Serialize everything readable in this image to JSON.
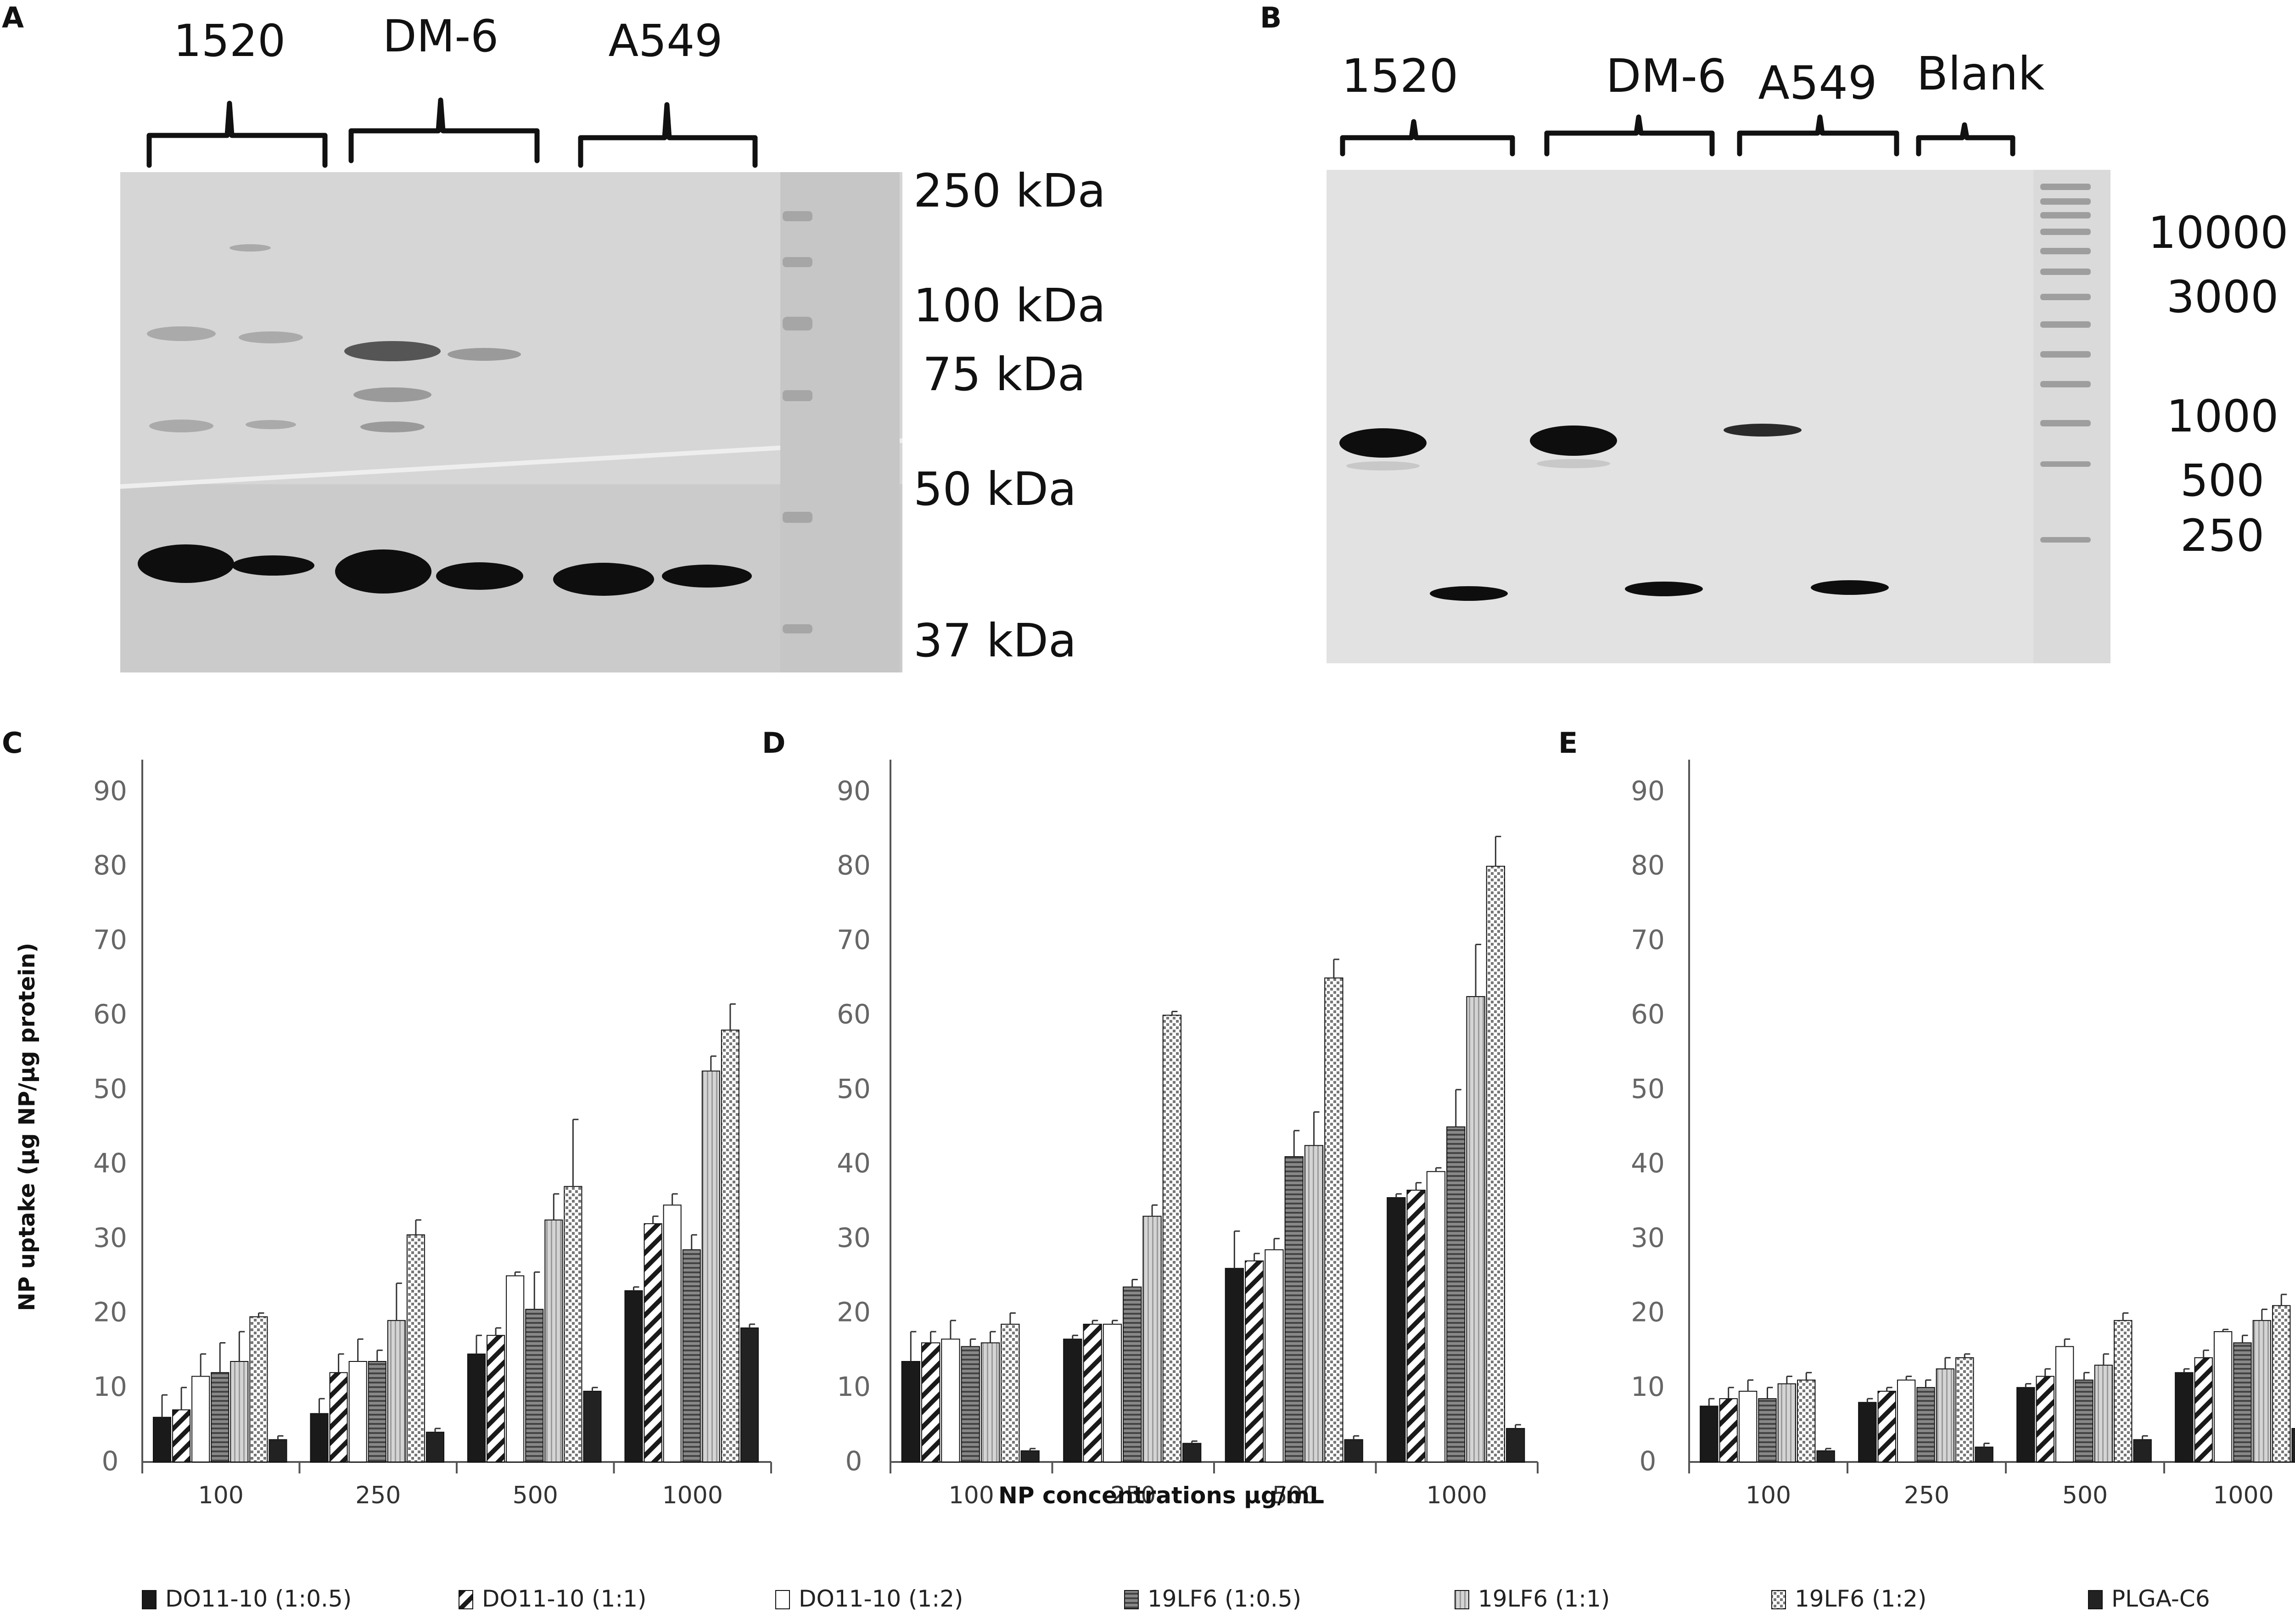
{
  "panel_a": {
    "letter": "A",
    "groups": [
      "1520",
      "DM-6",
      "A549"
    ],
    "markers": [
      "250 kDa",
      "100 kDa",
      "75 kDa",
      "50 kDa",
      "37 kDa"
    ]
  },
  "panel_b": {
    "letter": "B",
    "groups": [
      "1520",
      "DM-6",
      "A549",
      "Blank"
    ],
    "markers": [
      "10000",
      "3000",
      "1000",
      "500",
      "250"
    ]
  },
  "colors": {
    "bar_fill": "#1a1a1a",
    "bar_hatch": "#1a1a1a",
    "bar_white": "#ffffff",
    "bar_mid": "#7a7a7a",
    "bar_light": "#c8c8c8",
    "bar_dark": "#222222",
    "axis": "#555555"
  },
  "shared": {
    "xlabel": "NP concentrations µg/mL",
    "ylabel": "NP uptake (µg NP/µg protein)",
    "series_names": [
      "DO11-10 (1:0.5)",
      "DO11-10 (1:1)",
      "DO11-10 (1:2)",
      "19LF6 (1:0.5)",
      "19LF6 (1:1)",
      "19LF6 (1:2)",
      "PLGA-C6"
    ]
  },
  "chart_data": [
    {
      "type": "bar",
      "panel": "C",
      "categories": [
        "100",
        "250",
        "500",
        "1000"
      ],
      "yticks": [
        0,
        10,
        20,
        30,
        40,
        50,
        60,
        70,
        80,
        90
      ],
      "ylim": [
        0,
        90
      ],
      "series": [
        {
          "name": "DO11-10 (1:0.5)",
          "values": [
            6,
            6.5,
            14.5,
            23
          ],
          "errors": [
            3,
            2,
            2.5,
            0.5
          ]
        },
        {
          "name": "DO11-10 (1:1)",
          "values": [
            7,
            12,
            17,
            32
          ],
          "errors": [
            3,
            2.5,
            1,
            1
          ]
        },
        {
          "name": "DO11-10 (1:2)",
          "values": [
            11.5,
            13.5,
            25,
            34.5
          ],
          "errors": [
            3,
            3,
            0.5,
            1.5
          ]
        },
        {
          "name": "19LF6 (1:0.5)",
          "values": [
            12,
            13.5,
            20.5,
            28.5
          ],
          "errors": [
            4,
            1.5,
            5,
            2
          ]
        },
        {
          "name": "19LF6 (1:1)",
          "values": [
            13.5,
            19,
            32.5,
            52.5
          ],
          "errors": [
            4,
            5,
            3.5,
            2
          ]
        },
        {
          "name": "19LF6 (1:2)",
          "values": [
            19.5,
            30.5,
            37,
            58
          ],
          "errors": [
            0.5,
            2,
            9,
            3.5
          ]
        },
        {
          "name": "PLGA-C6",
          "values": [
            3,
            4,
            9.5,
            18
          ],
          "errors": [
            0.5,
            0.5,
            0.5,
            0.5
          ]
        }
      ]
    },
    {
      "type": "bar",
      "panel": "D",
      "categories": [
        "100",
        "250",
        "500",
        "1000"
      ],
      "yticks": [
        0,
        10,
        20,
        30,
        40,
        50,
        60,
        70,
        80,
        90
      ],
      "ylim": [
        0,
        90
      ],
      "series": [
        {
          "name": "DO11-10 (1:0.5)",
          "values": [
            13.5,
            16.5,
            26,
            35.5
          ],
          "errors": [
            4,
            0.5,
            5,
            0.5
          ]
        },
        {
          "name": "DO11-10 (1:1)",
          "values": [
            16,
            18.5,
            27,
            36.5
          ],
          "errors": [
            1.5,
            0.5,
            1,
            1
          ]
        },
        {
          "name": "DO11-10 (1:2)",
          "values": [
            16.5,
            18.5,
            28.5,
            39
          ],
          "errors": [
            2.5,
            0.5,
            1.5,
            0.5
          ]
        },
        {
          "name": "19LF6 (1:0.5)",
          "values": [
            15.5,
            23.5,
            41,
            45
          ],
          "errors": [
            1,
            1,
            3.5,
            5
          ]
        },
        {
          "name": "19LF6 (1:1)",
          "values": [
            16,
            33,
            42.5,
            62.5
          ],
          "errors": [
            1.5,
            1.5,
            4.5,
            7
          ]
        },
        {
          "name": "19LF6 (1:2)",
          "values": [
            18.5,
            60,
            65,
            80
          ],
          "errors": [
            1.5,
            0.5,
            2.5,
            4
          ]
        },
        {
          "name": "PLGA-C6",
          "values": [
            1.5,
            2.5,
            3,
            4.5
          ],
          "errors": [
            0.3,
            0.3,
            0.5,
            0.5
          ]
        }
      ]
    },
    {
      "type": "bar",
      "panel": "E",
      "categories": [
        "100",
        "250",
        "500",
        "1000"
      ],
      "yticks": [
        0,
        10,
        20,
        30,
        40,
        50,
        60,
        70,
        80,
        90
      ],
      "ylim": [
        0,
        90
      ],
      "series": [
        {
          "name": "DO11-10 (1:0.5)",
          "values": [
            7.5,
            8,
            10,
            12
          ],
          "errors": [
            1,
            0.5,
            0.5,
            0.5
          ]
        },
        {
          "name": "DO11-10 (1:1)",
          "values": [
            8.5,
            9.5,
            11.5,
            14
          ],
          "errors": [
            1.5,
            0.5,
            1,
            1
          ]
        },
        {
          "name": "DO11-10 (1:2)",
          "values": [
            9.5,
            11,
            15.5,
            17.5
          ],
          "errors": [
            1.5,
            0.5,
            1,
            0.3
          ]
        },
        {
          "name": "19LF6 (1:0.5)",
          "values": [
            8.5,
            10,
            11,
            16
          ],
          "errors": [
            1.5,
            1,
            1,
            1
          ]
        },
        {
          "name": "19LF6 (1:1)",
          "values": [
            10.5,
            12.5,
            13,
            19
          ],
          "errors": [
            1,
            1.5,
            1.5,
            1.5
          ]
        },
        {
          "name": "19LF6 (1:2)",
          "values": [
            11,
            14,
            19,
            21
          ],
          "errors": [
            1,
            0.5,
            1,
            1.5
          ]
        },
        {
          "name": "PLGA-C6",
          "values": [
            1.5,
            2,
            3,
            4.5
          ],
          "errors": [
            0.3,
            0.5,
            0.5,
            0.5
          ]
        }
      ]
    }
  ]
}
